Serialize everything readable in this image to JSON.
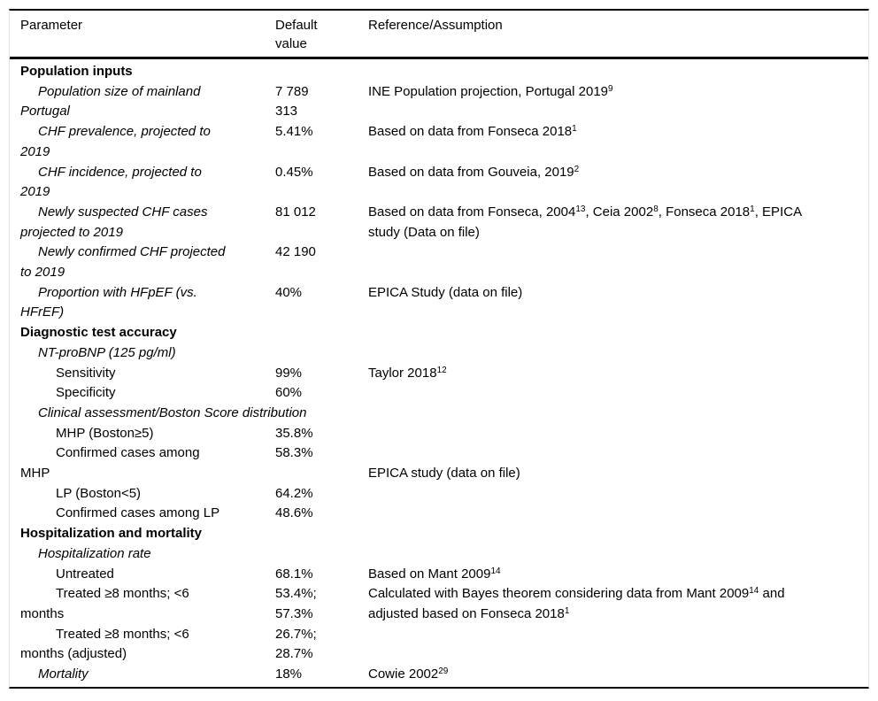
{
  "colors": {
    "text": "#000000",
    "horizontal_rule": "#000000",
    "side_border": "#e2e2e2",
    "background": "#ffffff"
  },
  "table": {
    "columns": [
      "Parameter",
      "Default\nvalue",
      "Reference/Assumption"
    ],
    "rows": [
      {
        "style": "section",
        "param": "Population inputs"
      },
      {
        "style": "item",
        "indent": 1,
        "italic": true,
        "param": "Population size of mainland\nPortugal",
        "value": "7 789\n313",
        "ref": [
          {
            "t": "INE Population projection, Portugal 2019"
          },
          {
            "sup": "9"
          }
        ]
      },
      {
        "style": "item",
        "indent": 1,
        "italic": true,
        "param": "CHF prevalence, projected to\n2019",
        "value": "5.41%",
        "ref": [
          {
            "t": "Based on data from Fonseca 2018"
          },
          {
            "sup": "1"
          }
        ]
      },
      {
        "style": "item",
        "indent": 1,
        "italic": true,
        "param": "CHF incidence, projected to\n2019",
        "value": "0.45%",
        "ref": [
          {
            "t": "Based on data from Gouveia, 2019"
          },
          {
            "sup": "2"
          }
        ]
      },
      {
        "style": "item",
        "indent": 1,
        "italic": true,
        "param": "Newly suspected CHF cases\nprojected to 2019",
        "value": "81 012",
        "ref": [
          {
            "t": "Based on data from Fonseca, 2004"
          },
          {
            "sup": "13"
          },
          {
            "t": ", Ceia 2002"
          },
          {
            "sup": "8"
          },
          {
            "t": ", Fonseca 2018"
          },
          {
            "sup": "1"
          },
          {
            "t": ", EPICA\nstudy (Data on file)"
          }
        ]
      },
      {
        "style": "item",
        "indent": 1,
        "italic": true,
        "param": "Newly confirmed CHF projected\nto 2019",
        "value": "42 190",
        "ref": []
      },
      {
        "style": "item",
        "indent": 1,
        "italic": true,
        "param": "Proportion with HFpEF (vs.\nHFrEF)",
        "value": "40%",
        "ref": [
          {
            "t": "EPICA Study (data on file)"
          }
        ]
      },
      {
        "style": "section",
        "param": "Diagnostic test accuracy"
      },
      {
        "style": "subheader",
        "indent": 1,
        "italic": true,
        "param": "NT-proBNP (125 pg/ml)"
      },
      {
        "style": "item",
        "indent": 2,
        "param": "Sensitivity",
        "value": "99%",
        "ref": [
          {
            "t": "Taylor 2018"
          },
          {
            "sup": "12"
          }
        ]
      },
      {
        "style": "item",
        "indent": 2,
        "param": "Specificity",
        "value": "60%",
        "ref": []
      },
      {
        "style": "subheader",
        "indent": 1,
        "italic": true,
        "param": "Clinical assessment/Boston Score distribution"
      },
      {
        "style": "item",
        "indent": 2,
        "param": "MHP (Boston≥5)",
        "value": "35.8%",
        "ref": []
      },
      {
        "style": "item",
        "indent": 2,
        "param": "Confirmed cases among\nMHP",
        "value": "58.3%",
        "ref": [
          {
            "t": "EPICA study (data on file)"
          }
        ],
        "ref_line2": true
      },
      {
        "style": "item",
        "indent": 2,
        "param": "LP (Boston<5)",
        "value": "64.2%",
        "ref": []
      },
      {
        "style": "item",
        "indent": 2,
        "param": "Confirmed cases among LP",
        "value": "48.6%",
        "ref": []
      },
      {
        "style": "section",
        "param": "Hospitalization and mortality"
      },
      {
        "style": "subheader",
        "indent": 1,
        "italic": true,
        "param": "Hospitalization rate"
      },
      {
        "style": "item",
        "indent": 2,
        "param": "Untreated",
        "value": "68.1%",
        "ref": [
          {
            "t": "Based on Mant 2009"
          },
          {
            "sup": "14"
          }
        ]
      },
      {
        "style": "item",
        "indent": 2,
        "param": "Treated ≥8 months; <6\nmonths",
        "value": "53.4%;\n57.3%",
        "ref": [
          {
            "t": "Calculated with Bayes theorem considering data from Mant 2009"
          },
          {
            "sup": "14"
          },
          {
            "t": " and\nadjusted based on Fonseca 2018"
          },
          {
            "sup": "1"
          }
        ]
      },
      {
        "style": "item",
        "indent": 2,
        "param": "Treated ≥8 months; <6\nmonths (adjusted)",
        "value": "26.7%;\n28.7%",
        "ref": []
      },
      {
        "style": "item",
        "indent": 1,
        "italic": true,
        "param": "Mortality",
        "value": "18%",
        "ref": [
          {
            "t": "Cowie 2002"
          },
          {
            "sup": "29"
          }
        ]
      }
    ]
  }
}
